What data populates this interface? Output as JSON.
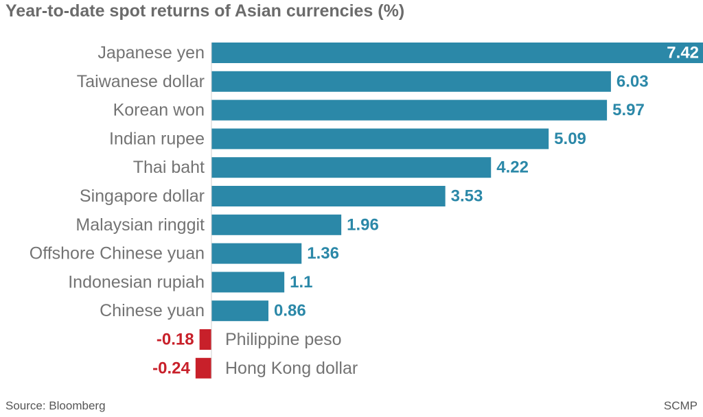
{
  "title": "Year-to-date spot returns of Asian currencies (%)",
  "source": "Source: Bloomberg",
  "credit": "SCMP",
  "colors": {
    "positive": "#2b88a8",
    "negative": "#c8202a",
    "label": "#737373"
  },
  "chart_data": {
    "type": "bar",
    "orientation": "horizontal",
    "title": "Year-to-date spot returns of Asian currencies (%)",
    "categories": [
      "Japanese yen",
      "Taiwanese dollar",
      "Korean won",
      "Indian rupee",
      "Thai baht",
      "Singapore dollar",
      "Malaysian ringgit",
      "Offshore Chinese yuan",
      "Indonesian rupiah",
      "Chinese yuan",
      "Philippine peso",
      "Hong Kong dollar"
    ],
    "values": [
      7.42,
      6.03,
      5.97,
      5.09,
      4.22,
      3.53,
      1.96,
      1.36,
      1.1,
      0.86,
      -0.18,
      -0.24
    ],
    "labels": [
      "7.42",
      "6.03",
      "5.97",
      "5.09",
      "4.22",
      "3.53",
      "1.96",
      "1.36",
      "1.1",
      "0.86",
      "-0.18",
      "-0.24"
    ],
    "xlim": [
      -0.24,
      7.42
    ],
    "grid": false,
    "legend": "none"
  }
}
